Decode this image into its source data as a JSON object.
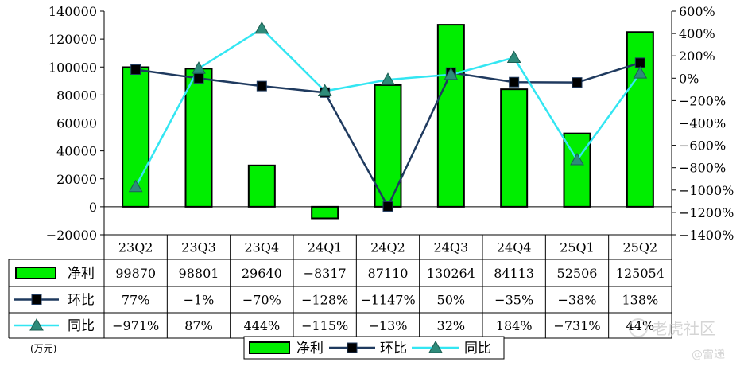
{
  "chart_data": {
    "type": "bar",
    "categories": [
      "23Q2",
      "23Q3",
      "23Q4",
      "24Q1",
      "24Q2",
      "24Q3",
      "24Q4",
      "25Q1",
      "25Q2"
    ],
    "series": [
      {
        "name": "净利",
        "type": "bar",
        "axis": "left",
        "color": "#00ee00",
        "values": [
          99870,
          98801,
          29640,
          -8317,
          87110,
          130264,
          84113,
          52506,
          125054
        ],
        "labels": [
          "99870",
          "98801",
          "29640",
          "−8317",
          "87110",
          "130264",
          "84113",
          "52506",
          "125054"
        ]
      },
      {
        "name": "环比",
        "type": "line",
        "axis": "right",
        "color": "#1f3a5f",
        "marker": "square",
        "values": [
          77,
          -1,
          -70,
          -128,
          -1147,
          50,
          -35,
          -38,
          138
        ],
        "labels": [
          "77%",
          "−1%",
          "−70%",
          "−128%",
          "−1147%",
          "50%",
          "−35%",
          "−38%",
          "138%"
        ]
      },
      {
        "name": "同比",
        "type": "line",
        "axis": "right",
        "color": "#33e6f2",
        "marker": "triangle",
        "values": [
          -971,
          87,
          444,
          -115,
          -13,
          32,
          184,
          -731,
          44
        ],
        "labels": [
          "−971%",
          "87%",
          "444%",
          "−115%",
          "−13%",
          "32%",
          "184%",
          "−731%",
          "44%"
        ]
      }
    ],
    "y_left": {
      "min": -20000,
      "max": 140000,
      "step": 20000,
      "ticks": [
        "−20000",
        "0",
        "20000",
        "40000",
        "60000",
        "80000",
        "100000",
        "120000",
        "140000"
      ]
    },
    "y_right": {
      "min": -1400,
      "max": 600,
      "step": 200,
      "ticks": [
        "−1400%",
        "−1200%",
        "−1000%",
        "−800%",
        "−600%",
        "−400%",
        "−200%",
        "0%",
        "200%",
        "400%",
        "600%"
      ]
    },
    "data_table": true,
    "grid": false,
    "legend_position": "bottom",
    "unit_note": "(万元)"
  },
  "watermark": {
    "text1": "老虎社区",
    "text2": "@雷递"
  }
}
